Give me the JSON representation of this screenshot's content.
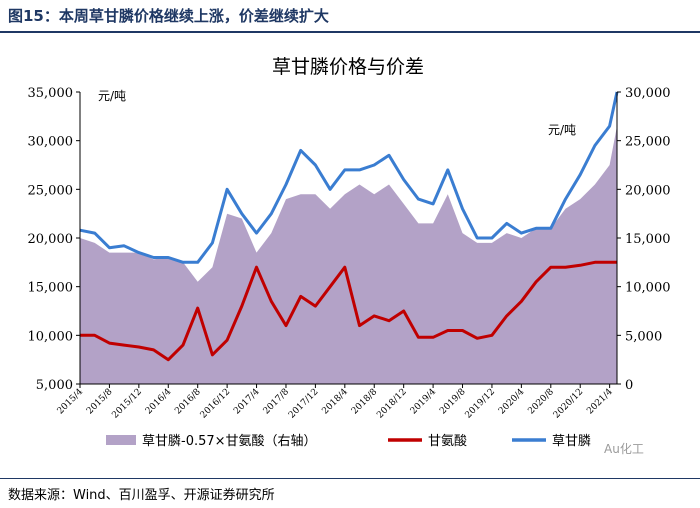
{
  "figure_title": "图15：本周草甘膦价格继续上涨，价差继续扩大",
  "source": "数据来源：Wind、百川盈孚、开源证券研究所",
  "watermark": "Au化工",
  "chart_data": {
    "type": "line",
    "title": "草甘膦价格与价差",
    "y_left": {
      "unit_label": "元/吨",
      "lim": [
        5000,
        35000
      ],
      "ticks": [
        "5,000",
        "10,000",
        "15,000",
        "20,000",
        "25,000",
        "30,000",
        "35,000"
      ]
    },
    "y_right": {
      "unit_label": "元/吨",
      "lim": [
        0,
        30000
      ],
      "ticks": [
        "0",
        "5,000",
        "10,000",
        "15,000",
        "20,000",
        "25,000",
        "30,000"
      ]
    },
    "x_tick_labels": [
      "2015/4",
      "2015/8",
      "2015/12",
      "2016/4",
      "2016/8",
      "2016/12",
      "2017/4",
      "2017/8",
      "2017/12",
      "2018/4",
      "2018/8",
      "2018/12",
      "2019/4",
      "2019/8",
      "2019/12",
      "2020/4",
      "2020/8",
      "2020/12",
      "2021/4"
    ],
    "legend": [
      "草甘膦-0.57×甘氨酸（右轴）",
      "甘氨酸",
      "草甘膦"
    ],
    "colors": {
      "spread": "#b3a2c7",
      "glycine": "#c00000",
      "glyphosate": "#3a7dd1"
    },
    "x_months": [
      0,
      2,
      4,
      6,
      8,
      10,
      12,
      14,
      16,
      18,
      20,
      22,
      24,
      26,
      28,
      30,
      32,
      34,
      36,
      38,
      40,
      42,
      44,
      46,
      48,
      50,
      52,
      54,
      56,
      58,
      60,
      62,
      64,
      66,
      68,
      70,
      72,
      73
    ],
    "series": [
      {
        "name": "草甘膦",
        "axis": "left",
        "values": [
          20800,
          20500,
          19000,
          19200,
          18500,
          18000,
          18000,
          17500,
          17500,
          19500,
          25000,
          22500,
          20500,
          22500,
          25500,
          29000,
          27500,
          25000,
          27000,
          27000,
          27500,
          28500,
          26000,
          24000,
          23500,
          27000,
          23000,
          20000,
          20000,
          21500,
          20500,
          21000,
          21000,
          24000,
          26500,
          29500,
          31500,
          35000
        ]
      },
      {
        "name": "甘氨酸",
        "axis": "left",
        "values": [
          10000,
          10000,
          9200,
          9000,
          8800,
          8500,
          7500,
          9000,
          12800,
          8000,
          9500,
          13000,
          17000,
          13500,
          11000,
          14000,
          13000,
          15000,
          17000,
          11000,
          12000,
          11500,
          12500,
          9800,
          9800,
          10500,
          10500,
          9700,
          10000,
          12000,
          13500,
          15500,
          17000,
          17000,
          17200,
          17500,
          17500,
          17500
        ]
      },
      {
        "name": "草甘膦-0.57×甘氨酸",
        "axis": "right",
        "values": [
          15000,
          14500,
          13500,
          13500,
          13500,
          12800,
          13000,
          12500,
          10500,
          12000,
          17500,
          17000,
          13500,
          15500,
          19000,
          19500,
          19500,
          18000,
          19500,
          20500,
          19500,
          20500,
          18500,
          16500,
          16500,
          19500,
          15500,
          14500,
          14500,
          15500,
          15000,
          16000,
          16000,
          18000,
          19000,
          20500,
          22500,
          26500
        ]
      }
    ]
  }
}
